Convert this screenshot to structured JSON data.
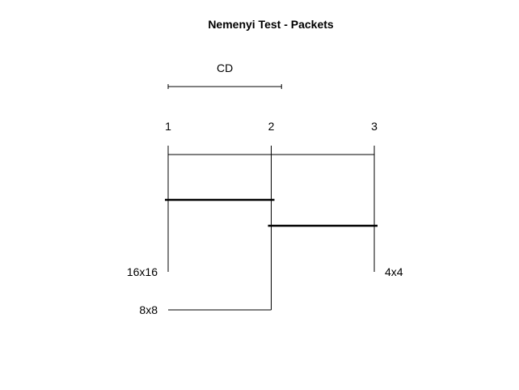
{
  "chart_data": {
    "type": "critical-difference",
    "title": "Nemenyi Test - Packets",
    "cd_label": "CD",
    "cd_value": 1.1,
    "axis": {
      "min": 1,
      "max": 3,
      "ticks": [
        1,
        2,
        3
      ],
      "tick_labels": [
        "1",
        "2",
        "3"
      ]
    },
    "methods": [
      {
        "name": "16x16",
        "rank": 1.0,
        "side": "left"
      },
      {
        "name": "8x8",
        "rank": 2.0,
        "side": "left"
      },
      {
        "name": "4x4",
        "rank": 3.0,
        "side": "right"
      }
    ],
    "cliques": [
      {
        "from": 1.0,
        "to": 2.0
      },
      {
        "from": 2.0,
        "to": 3.0
      }
    ]
  }
}
